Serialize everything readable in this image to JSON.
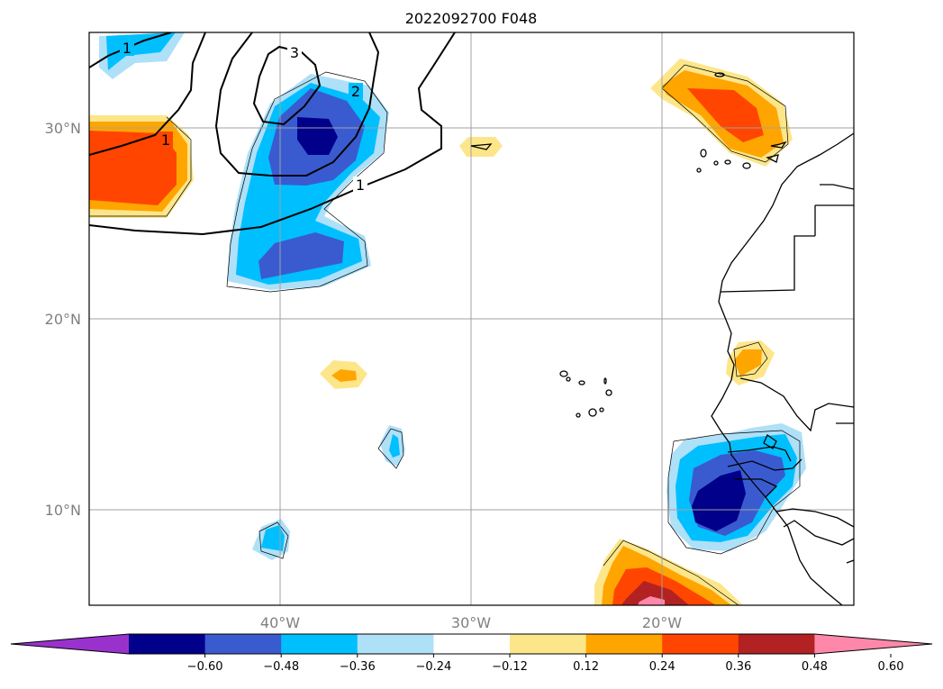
{
  "title": "2022092700 F048",
  "lat_labels": [
    "30°N",
    "20°N",
    "10°N"
  ],
  "lon_labels": [
    "40°W",
    "30°W",
    "20°W"
  ],
  "contour_labels": [
    "1",
    "1",
    "1",
    "2",
    "3"
  ],
  "colorbar": {
    "ticks": [
      "−0.60",
      "−0.48",
      "−0.36",
      "−0.24",
      "−0.12",
      "0.12",
      "0.24",
      "0.36",
      "0.48",
      "0.60"
    ],
    "colors": [
      "#9932cc",
      "#00008b",
      "#3a5bd0",
      "#00bfff",
      "#aee0f8",
      "#ffffff",
      "#fde68a",
      "#ffa500",
      "#ff4500",
      "#b22222",
      "#ff88aa"
    ]
  },
  "map_data": {
    "lon_range": [
      -50,
      -10
    ],
    "lat_range": [
      5,
      35
    ],
    "gridlines": "on"
  }
}
